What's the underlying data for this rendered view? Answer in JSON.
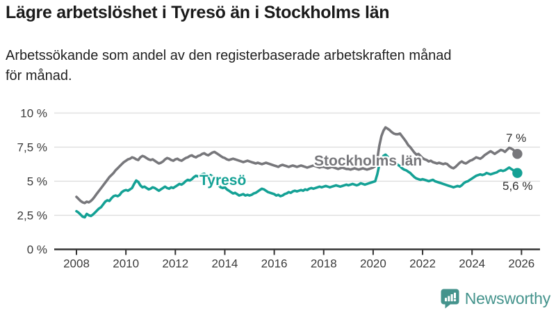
{
  "header": {
    "title": "Lägre arbetslöshet i Tyresö än i Stockholms län",
    "subtitle_line1": "Arbetssökande som andel av den registerbaserade arbetskraften månad",
    "subtitle_line2": "för månad."
  },
  "chart_data": {
    "type": "line",
    "title": "Lägre arbetslöshet i Tyresö än i Stockholms län",
    "subtitle": "Arbetssökande som andel av den registerbaserade arbetskraften månad för månad.",
    "unit": "%",
    "frequency": "monthly",
    "start": "2008-01",
    "end": "2025-11",
    "ylim": [
      0,
      10
    ],
    "grid": true,
    "y_ticks": [
      {
        "value": 0,
        "label": "0 %"
      },
      {
        "value": 2.5,
        "label": "2,5 %"
      },
      {
        "value": 5,
        "label": "5 %"
      },
      {
        "value": 7.5,
        "label": "7,5 %"
      },
      {
        "value": 10,
        "label": "10 %"
      }
    ],
    "x_tick_years": [
      2008,
      2010,
      2012,
      2014,
      2016,
      2018,
      2020,
      2022,
      2024,
      2026
    ],
    "grid_color": "#dcdcdc",
    "axis_color": "#333333",
    "series": [
      {
        "name": "Stockholms län",
        "slug": "stockholms-lan",
        "color": "#77777b",
        "end_label": "7 %",
        "end_value": 7.0,
        "values": [
          3.85,
          3.7,
          3.55,
          3.45,
          3.4,
          3.5,
          3.45,
          3.55,
          3.7,
          3.9,
          4.1,
          4.3,
          4.5,
          4.7,
          4.9,
          5.1,
          5.3,
          5.45,
          5.6,
          5.8,
          5.95,
          6.1,
          6.25,
          6.4,
          6.5,
          6.6,
          6.65,
          6.75,
          6.7,
          6.6,
          6.55,
          6.75,
          6.85,
          6.8,
          6.7,
          6.6,
          6.55,
          6.6,
          6.5,
          6.4,
          6.3,
          6.35,
          6.45,
          6.6,
          6.7,
          6.65,
          6.55,
          6.5,
          6.6,
          6.65,
          6.55,
          6.5,
          6.6,
          6.7,
          6.75,
          6.85,
          6.9,
          6.8,
          6.75,
          6.85,
          6.9,
          7.0,
          7.05,
          6.95,
          6.9,
          7.0,
          7.1,
          7.15,
          7.05,
          6.95,
          6.85,
          6.75,
          6.7,
          6.6,
          6.55,
          6.6,
          6.65,
          6.6,
          6.55,
          6.5,
          6.45,
          6.4,
          6.45,
          6.5,
          6.45,
          6.4,
          6.35,
          6.3,
          6.35,
          6.3,
          6.25,
          6.3,
          6.35,
          6.3,
          6.25,
          6.2,
          6.15,
          6.1,
          6.05,
          6.15,
          6.2,
          6.15,
          6.1,
          6.05,
          6.1,
          6.15,
          6.1,
          6.05,
          6.1,
          6.15,
          6.1,
          6.05,
          6.0,
          6.05,
          6.1,
          6.15,
          6.1,
          6.05,
          6.0,
          6.05,
          6.05,
          6.0,
          5.95,
          6.0,
          6.05,
          6.0,
          5.95,
          5.9,
          5.95,
          6.0,
          5.95,
          5.9,
          5.9,
          5.85,
          5.9,
          5.95,
          5.9,
          5.85,
          5.9,
          5.95,
          5.9,
          5.85,
          5.9,
          5.95,
          6.0,
          6.1,
          6.6,
          7.6,
          8.3,
          8.7,
          8.95,
          8.85,
          8.75,
          8.6,
          8.5,
          8.45,
          8.45,
          8.5,
          8.3,
          8.1,
          7.9,
          7.65,
          7.5,
          7.3,
          7.1,
          6.95,
          7.0,
          6.85,
          6.7,
          6.6,
          6.55,
          6.45,
          6.5,
          6.4,
          6.35,
          6.3,
          6.35,
          6.3,
          6.25,
          6.3,
          6.25,
          6.1,
          6.0,
          5.95,
          6.05,
          6.2,
          6.35,
          6.45,
          6.35,
          6.3,
          6.4,
          6.5,
          6.55,
          6.65,
          6.75,
          6.7,
          6.65,
          6.75,
          6.9,
          7.0,
          7.1,
          7.2,
          7.1,
          7.0,
          7.1,
          7.2,
          7.3,
          7.25,
          7.15,
          7.3,
          7.45,
          7.4,
          7.3,
          7.15,
          7.0
        ]
      },
      {
        "name": "Tyresö",
        "slug": "tyreso",
        "color": "#14a195",
        "end_label": "5,6 %",
        "end_value": 5.6,
        "values": [
          2.8,
          2.7,
          2.55,
          2.4,
          2.35,
          2.6,
          2.5,
          2.45,
          2.55,
          2.7,
          2.85,
          3.0,
          3.1,
          3.3,
          3.5,
          3.6,
          3.55,
          3.75,
          3.9,
          3.95,
          3.9,
          4.0,
          4.2,
          4.3,
          4.35,
          4.3,
          4.4,
          4.5,
          4.8,
          5.05,
          4.95,
          4.7,
          4.55,
          4.6,
          4.5,
          4.4,
          4.45,
          4.55,
          4.5,
          4.4,
          4.3,
          4.4,
          4.5,
          4.6,
          4.5,
          4.45,
          4.55,
          4.5,
          4.6,
          4.7,
          4.8,
          4.75,
          4.85,
          5.0,
          5.1,
          5.05,
          5.15,
          5.3,
          5.4,
          5.35,
          5.45,
          5.5,
          5.55,
          5.4,
          5.3,
          5.45,
          5.35,
          5.1,
          4.9,
          4.7,
          4.55,
          4.5,
          4.55,
          4.4,
          4.3,
          4.2,
          4.1,
          4.15,
          4.05,
          3.95,
          4.0,
          4.05,
          3.95,
          4.0,
          3.95,
          4.0,
          4.1,
          4.15,
          4.25,
          4.35,
          4.45,
          4.4,
          4.3,
          4.2,
          4.15,
          4.1,
          4.05,
          3.95,
          4.0,
          3.9,
          3.95,
          4.05,
          4.1,
          4.2,
          4.15,
          4.25,
          4.3,
          4.25,
          4.3,
          4.35,
          4.3,
          4.4,
          4.35,
          4.45,
          4.5,
          4.45,
          4.5,
          4.55,
          4.6,
          4.55,
          4.6,
          4.65,
          4.6,
          4.55,
          4.6,
          4.65,
          4.7,
          4.65,
          4.6,
          4.65,
          4.7,
          4.75,
          4.7,
          4.75,
          4.8,
          4.75,
          4.7,
          4.75,
          4.85,
          4.8,
          4.75,
          4.8,
          4.85,
          4.9,
          4.95,
          5.0,
          5.5,
          6.2,
          6.6,
          6.85,
          6.95,
          6.8,
          6.6,
          6.45,
          6.35,
          6.3,
          6.2,
          6.1,
          5.95,
          5.85,
          5.8,
          5.7,
          5.6,
          5.45,
          5.3,
          5.2,
          5.15,
          5.1,
          5.15,
          5.1,
          5.05,
          5.0,
          5.05,
          5.1,
          5.0,
          4.95,
          4.9,
          4.85,
          4.8,
          4.75,
          4.7,
          4.65,
          4.6,
          4.55,
          4.6,
          4.65,
          4.6,
          4.7,
          4.85,
          4.95,
          5.0,
          5.1,
          5.2,
          5.3,
          5.4,
          5.45,
          5.5,
          5.45,
          5.5,
          5.6,
          5.55,
          5.5,
          5.55,
          5.6,
          5.65,
          5.75,
          5.8,
          5.75,
          5.8,
          5.9,
          6.0,
          5.9,
          5.8,
          5.7,
          5.6
        ]
      }
    ]
  },
  "footer": {
    "brand": "Newsworthy",
    "brand_color": "#44938c"
  }
}
